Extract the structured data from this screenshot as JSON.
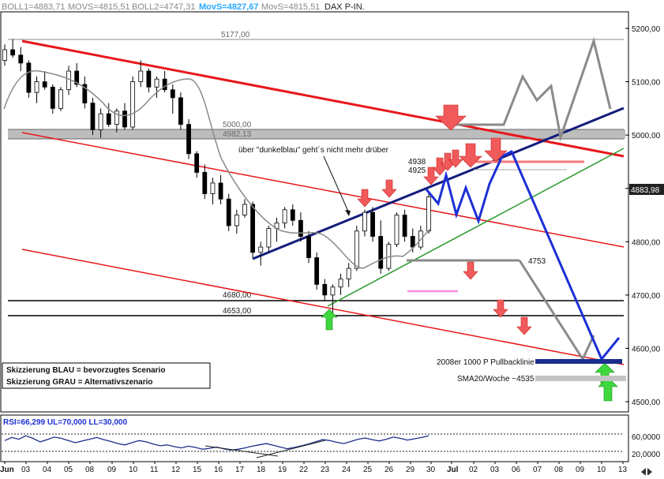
{
  "header": {
    "boll1": "BOLL1=4883,71",
    "movs1": "MOVS=4815,51",
    "boll2": "BOLL2=4747,31",
    "movs2": "MovS=4827,67",
    "movs3": "MovS=4815,51",
    "instrument": "DAX P-IN."
  },
  "colors": {
    "red": "#e8171b",
    "navy": "#141c7c",
    "blue": "#1c2fd4",
    "green": "#2c9a2c",
    "gray": "#8a8a8a",
    "pink": "#f98fe0",
    "arrow_red": "#f05a5a",
    "arrow_green": "#3ed83e",
    "candle_up": "#ffffff",
    "candle_down": "#000000"
  },
  "annotations": {
    "comment": "über \"dunkelblau\" geht´s nicht mehr drüber",
    "level_4938": "4938",
    "level_4925": "4925",
    "level_4753": "4753",
    "pullback": "2008er 1000 P Pullbacklinie",
    "sma": "SMA20/Woche ~4535"
  },
  "legend": {
    "line1": "Skizzierung BLAU = bevorzugtes Scenario",
    "line2": "Skizzierung GRAU = Alternativszenario"
  },
  "rsi": {
    "header": "RSI=66,299 UL=70,000 LL=30,000",
    "ticks": [
      "60,0000",
      "20,0000"
    ],
    "upper": 70,
    "lower": 30,
    "last": 66.299
  },
  "footer": {
    "pager_icon": "pager-arrows-icon"
  },
  "chart_data": {
    "type": "candlestick",
    "title": "DAX P-IN.",
    "ylim": [
      4475,
      5225
    ],
    "y_ticks": [
      {
        "value": 5200,
        "label": "5200,00"
      },
      {
        "value": 5100,
        "label": "5100,00"
      },
      {
        "value": 5000,
        "label": "5000,00"
      },
      {
        "value": 4900,
        "label": "4900,00"
      },
      {
        "value": 4800,
        "label": "4800,00"
      },
      {
        "value": 4700,
        "label": "4700,00"
      },
      {
        "value": 4600,
        "label": "4600,00"
      },
      {
        "value": 4500,
        "label": "4500,00"
      }
    ],
    "last_price": "4883,98",
    "x_ticks": [
      "Jun",
      "03",
      "04",
      "05",
      "08",
      "09",
      "10",
      "11",
      "12",
      "15",
      "16",
      "17",
      "18",
      "19",
      "22",
      "23",
      "24",
      "25",
      "26",
      "29",
      "30",
      "Jul",
      "02",
      "03",
      "06",
      "07",
      "08",
      "09",
      "10",
      "13"
    ],
    "ohlc": [
      [
        5140,
        5170,
        5130,
        5160
      ],
      [
        5160,
        5180,
        5145,
        5150
      ],
      [
        5150,
        5165,
        5120,
        5135
      ],
      [
        5135,
        5140,
        5070,
        5080
      ],
      [
        5080,
        5110,
        5060,
        5100
      ],
      [
        5100,
        5120,
        5085,
        5090
      ],
      [
        5090,
        5095,
        5040,
        5050
      ],
      [
        5050,
        5090,
        5045,
        5085
      ],
      [
        5085,
        5130,
        5075,
        5120
      ],
      [
        5120,
        5135,
        5090,
        5095
      ],
      [
        5095,
        5110,
        5050,
        5060
      ],
      [
        5060,
        5070,
        5000,
        5010
      ],
      [
        5010,
        5050,
        4995,
        5040
      ],
      [
        5040,
        5060,
        5015,
        5020
      ],
      [
        5020,
        5050,
        5005,
        5045
      ],
      [
        5045,
        5060,
        5010,
        5015
      ],
      [
        5015,
        5110,
        5010,
        5100
      ],
      [
        5100,
        5140,
        5090,
        5120
      ],
      [
        5120,
        5125,
        5080,
        5090
      ],
      [
        5090,
        5110,
        5070,
        5105
      ],
      [
        5105,
        5120,
        5080,
        5085
      ],
      [
        5085,
        5095,
        5040,
        5070
      ],
      [
        5070,
        5080,
        5010,
        5020
      ],
      [
        5020,
        5030,
        4955,
        4965
      ],
      [
        4965,
        4970,
        4920,
        4930
      ],
      [
        4930,
        4945,
        4880,
        4890
      ],
      [
        4890,
        4920,
        4870,
        4910
      ],
      [
        4910,
        4925,
        4870,
        4880
      ],
      [
        4880,
        4890,
        4820,
        4830
      ],
      [
        4830,
        4860,
        4815,
        4850
      ],
      [
        4850,
        4880,
        4845,
        4870
      ],
      [
        4870,
        4875,
        4770,
        4780
      ],
      [
        4780,
        4800,
        4755,
        4790
      ],
      [
        4790,
        4830,
        4780,
        4825
      ],
      [
        4825,
        4845,
        4800,
        4835
      ],
      [
        4835,
        4865,
        4825,
        4860
      ],
      [
        4860,
        4870,
        4830,
        4840
      ],
      [
        4840,
        4855,
        4800,
        4810
      ],
      [
        4810,
        4820,
        4760,
        4770
      ],
      [
        4770,
        4780,
        4710,
        4720
      ],
      [
        4720,
        4730,
        4690,
        4700
      ],
      [
        4700,
        4720,
        4665,
        4715
      ],
      [
        4715,
        4740,
        4700,
        4730
      ],
      [
        4730,
        4760,
        4715,
        4750
      ],
      [
        4750,
        4830,
        4745,
        4820
      ],
      [
        4820,
        4860,
        4810,
        4855
      ],
      [
        4855,
        4865,
        4800,
        4810
      ],
      [
        4810,
        4840,
        4740,
        4750
      ],
      [
        4750,
        4800,
        4745,
        4795
      ],
      [
        4795,
        4855,
        4790,
        4850
      ],
      [
        4850,
        4860,
        4800,
        4810
      ],
      [
        4810,
        4825,
        4780,
        4790
      ],
      [
        4790,
        4830,
        4785,
        4820
      ],
      [
        4820,
        4890,
        4815,
        4884
      ]
    ]
  }
}
